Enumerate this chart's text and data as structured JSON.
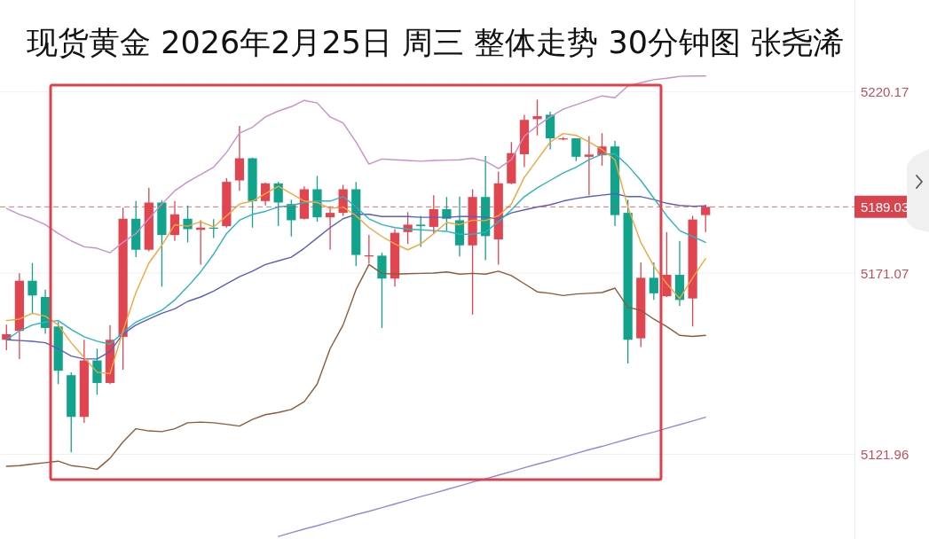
{
  "chart_data": {
    "type": "candlestick",
    "title": "现货黄金 2026年2月25日 周三 整体走势 30分钟图 张尧浠",
    "categories": [
      null,
      null,
      null,
      null,
      null,
      null,
      null,
      null,
      null,
      null,
      null,
      null,
      null,
      null,
      null,
      null,
      null,
      null,
      null,
      null,
      null,
      null,
      null,
      null,
      null,
      null,
      null,
      null,
      null,
      null,
      null,
      null,
      null,
      null,
      null,
      null,
      null,
      null,
      null,
      null,
      null,
      null,
      null,
      null,
      null,
      null,
      null,
      null,
      null,
      null,
      null,
      null,
      null,
      null,
      null
    ],
    "ohlc": [
      [
        5153.0,
        5157.1,
        5150.2,
        5154.5
      ],
      [
        5155.4,
        5171.0,
        5147.8,
        5169.0
      ],
      [
        5169.0,
        5173.8,
        5160.2,
        5165.0
      ],
      [
        5164.6,
        5166.6,
        5154.6,
        5156.2
      ],
      [
        5156.6,
        5157.8,
        5141.0,
        5144.6
      ],
      [
        5143.4,
        5144.2,
        5122.5,
        5132.1
      ],
      [
        5132.1,
        5153.0,
        5130.5,
        5147.4
      ],
      [
        5147.4,
        5150.6,
        5138.1,
        5141.3
      ],
      [
        5141.3,
        5157.0,
        5141.0,
        5153.0
      ],
      [
        5153.8,
        5188.8,
        5144.9,
        5185.8
      ],
      [
        5185.8,
        5190.6,
        5175.4,
        5177.4
      ],
      [
        5177.4,
        5194.2,
        5177.0,
        5190.2
      ],
      [
        5190.2,
        5190.8,
        5167.4,
        5181.4
      ],
      [
        5181.4,
        5190.6,
        5179.8,
        5187.0
      ],
      [
        5185.8,
        5189.4,
        5179.4,
        5183.0
      ],
      [
        5182.8,
        5185.4,
        5173.4,
        5183.4
      ],
      [
        5183.4,
        5185.7,
        5180.6,
        5183.2
      ],
      [
        5183.8,
        5196.8,
        5183.4,
        5195.8
      ],
      [
        5196.2,
        5211.0,
        5193.4,
        5202.2
      ],
      [
        5202.2,
        5202.4,
        5183.4,
        5190.6
      ],
      [
        5190.6,
        5195.6,
        5189.4,
        5195.4
      ],
      [
        5195.4,
        5195.8,
        5183.8,
        5190.2
      ],
      [
        5189.8,
        5191.0,
        5181.0,
        5185.4
      ],
      [
        5185.8,
        5194.6,
        5185.6,
        5193.8
      ],
      [
        5193.8,
        5197.4,
        5185.0,
        5186.2
      ],
      [
        5186.2,
        5189.1,
        5177.4,
        5187.4
      ],
      [
        5187.4,
        5195.0,
        5186.6,
        5193.8
      ],
      [
        5193.8,
        5195.8,
        5173.0,
        5176.0
      ],
      [
        5175.6,
        5181.4,
        5173.7,
        5175.9
      ],
      [
        5175.8,
        5176.6,
        5156.2,
        5169.6
      ],
      [
        5169.6,
        5183.0,
        5167.4,
        5182.0
      ],
      [
        5182.2,
        5187.6,
        5179.0,
        5184.2
      ],
      [
        5184.2,
        5186.6,
        5178.2,
        5183.8
      ],
      [
        5183.6,
        5192.2,
        5181.8,
        5188.4
      ],
      [
        5188.4,
        5191.7,
        5182.6,
        5185.8
      ],
      [
        5185.4,
        5191.8,
        5175.6,
        5178.6
      ],
      [
        5178.6,
        5193.8,
        5159.8,
        5191.7
      ],
      [
        5191.7,
        5202.8,
        5174.6,
        5181.1
      ],
      [
        5180.2,
        5198.6,
        5173.4,
        5195.4
      ],
      [
        5195.4,
        5206.6,
        5195.2,
        5203.6
      ],
      [
        5203.3,
        5214.0,
        5199.8,
        5212.6
      ],
      [
        5212.8,
        5218.1,
        5208.4,
        5213.6
      ],
      [
        5214.0,
        5214.8,
        5204.6,
        5207.6
      ],
      [
        5207.3,
        5207.9,
        5207.1,
        5207.6
      ],
      [
        5207.6,
        5207.6,
        5201.4,
        5202.6
      ],
      [
        5202.6,
        5208.2,
        5192.2,
        5203.2
      ],
      [
        5203.0,
        5209.0,
        5200.2,
        5205.4
      ],
      [
        5205.4,
        5206.9,
        5183.8,
        5186.8
      ],
      [
        5187.4,
        5191.0,
        5146.6,
        5153.0
      ],
      [
        5153.4,
        5174.0,
        5151.0,
        5169.8
      ],
      [
        5169.8,
        5174.0,
        5163.8,
        5165.6
      ],
      [
        5164.8,
        5182.2,
        5164.6,
        5170.6
      ],
      [
        5170.6,
        5179.8,
        5162.2,
        5163.8
      ],
      [
        5164.2,
        5186.6,
        5156.6,
        5185.6
      ],
      [
        5186.8,
        5189.6,
        5182.2,
        5189.03
      ]
    ],
    "colors": [
      "#e04550",
      "#e04550",
      "#12a38c",
      "#12a38c",
      "#12a38c",
      "#12a38c",
      "#e04550",
      "#12a38c",
      "#e04550",
      "#e04550",
      "#12a38c",
      "#e04550",
      "#12a38c",
      "#e04550",
      "#12a38c",
      "#e04550",
      "#12a38c",
      "#e04550",
      "#e04550",
      "#12a38c",
      "#e04550",
      "#12a38c",
      "#12a38c",
      "#e04550",
      "#12a38c",
      "#e04550",
      "#e04550",
      "#12a38c",
      "#e04550",
      "#12a38c",
      "#e04550",
      "#e04550",
      "#12a38c",
      "#e04550",
      "#12a38c",
      "#12a38c",
      "#e04550",
      "#12a38c",
      "#e04550",
      "#e04550",
      "#e04550",
      "#e04550",
      "#12a38c",
      "#e04550",
      "#12a38c",
      "#e04550",
      "#e04550",
      "#12a38c",
      "#12a38c",
      "#e04550",
      "#12a38c",
      "#e04550",
      "#12a38c",
      "#e04550",
      "#e04550"
    ],
    "series": [
      {
        "type": "line",
        "color": "#c98fcb",
        "values": [
          5188.6,
          5187.0,
          5185.8,
          5184.2,
          5181.8,
          5179.8,
          5178.2,
          5177.8,
          5176.6,
          5179.4,
          5181.8,
          5185.8,
          5189.8,
          5193.4,
          5195.8,
          5197.8,
          5199.8,
          5203.8,
          5209.0,
          5210.6,
          5213.4,
          5215.0,
          5216.2,
          5217.9,
          5217.2,
          5213.4,
          5211.8,
          5206.6,
          5200.6,
          5202.0,
          5201.8,
          5201.6,
          5201.4,
          5201.6,
          5201.7,
          5201.8,
          5202.2,
          5201.4,
          5199.4,
          5201.8,
          5208.2,
          5211.0,
          5213.4,
          5215.5,
          5216.7,
          5217.9,
          5219.1,
          5218.6,
          5221.8,
          5222.7,
          5223.5,
          5223.9,
          5224.4,
          5224.5,
          5224.5
        ]
      },
      {
        "type": "line",
        "color": "#8e5a3a",
        "values": [
          5118.7,
          5118.9,
          5119.3,
          5119.7,
          5120.1,
          5118.9,
          5118.5,
          5117.9,
          5120.9,
          5125.3,
          5128.9,
          5128.3,
          5128.1,
          5128.9,
          5130.5,
          5130.7,
          5130.5,
          5130.1,
          5129.6,
          5131.4,
          5132.7,
          5133.3,
          5134.1,
          5136.2,
          5141.0,
          5150.6,
          5157.0,
          5166.6,
          5173.4,
          5171.0,
          5170.8,
          5170.9,
          5171.0,
          5171.1,
          5171.4,
          5170.8,
          5171.0,
          5170.8,
          5171.6,
          5170.4,
          5168.2,
          5166.0,
          5165.6,
          5165.0,
          5165.4,
          5165.6,
          5165.8,
          5167.0,
          5161.8,
          5161.0,
          5158.6,
          5156.6,
          5154.2,
          5153.9,
          5154.2
        ]
      },
      {
        "type": "line",
        "color": "#5a5ec4",
        "values": [
          5153.0,
          5152.8,
          5152.6,
          5152.2,
          5150.6,
          5148.6,
          5147.8,
          5147.8,
          5149.8,
          5154.6,
          5157.0,
          5158.6,
          5160.2,
          5161.4,
          5163.4,
          5164.6,
          5166.2,
          5168.2,
          5170.1,
          5171.6,
          5173.4,
          5174.4,
          5175.4,
          5177.8,
          5180.6,
          5183.4,
          5185.8,
          5187.0,
          5187.0,
          5186.4,
          5186.4,
          5186.4,
          5186.2,
          5186.2,
          5186.2,
          5186.4,
          5186.4,
          5186.2,
          5185.8,
          5187.4,
          5188.2,
          5189.0,
          5189.6,
          5190.6,
          5191.3,
          5191.8,
          5192.2,
          5192.6,
          5191.8,
          5191.8,
          5191.0,
          5190.0,
          5189.4,
          5189.2,
          5189.3
        ]
      },
      {
        "type": "line",
        "color": "#2bb3c4",
        "values": [
          5153.0,
          5155.4,
          5157.0,
          5157.8,
          5158.2,
          5155.8,
          5153.8,
          5152.6,
          5151.8,
          5155.0,
          5157.8,
          5159.4,
          5161.0,
          5163.8,
          5167.4,
          5171.4,
          5176.2,
          5181.8,
          5185.4,
          5187.0,
          5187.8,
          5189.0,
          5189.4,
          5190.2,
          5190.6,
          5190.6,
          5191.8,
          5189.0,
          5185.8,
          5184.2,
          5183.4,
          5183.0,
          5182.8,
          5182.6,
          5182.4,
          5181.6,
          5181.6,
          5182.2,
          5185.0,
          5188.2,
          5191.8,
          5194.2,
          5196.2,
          5198.2,
          5199.8,
          5201.8,
          5203.3,
          5203.4,
          5200.2,
          5196.2,
          5191.4,
          5186.6,
          5182.6,
          5181.0,
          5179.4
        ]
      },
      {
        "type": "line",
        "color": "#f3a53a",
        "values": [
          5158.2,
          5158.6,
          5160.2,
          5159.4,
          5157.0,
          5152.2,
          5148.2,
          5144.2,
          5143.8,
          5155.4,
          5165.8,
          5173.8,
          5178.6,
          5184.2,
          5183.8,
          5185.0,
          5183.6,
          5186.6,
          5189.8,
          5190.6,
          5192.6,
          5194.6,
          5192.6,
          5190.6,
          5190.2,
          5188.6,
          5189.0,
          5186.6,
          5183.4,
          5181.0,
          5179.0,
          5177.4,
          5179.0,
          5181.8,
          5184.8,
          5184.2,
          5185.4,
          5185.3,
          5186.6,
          5189.8,
          5197.0,
          5201.8,
          5206.6,
          5208.9,
          5208.4,
          5206.6,
          5204.6,
          5201.8,
          5189.0,
          5179.4,
          5173.0,
          5168.2,
          5164.2,
          5169.8,
          5175.0
        ]
      },
      {
        "type": "line",
        "color": "#9488d8",
        "values": [
          null,
          null,
          null,
          null,
          null,
          null,
          null,
          null,
          null,
          null,
          null,
          null,
          null,
          null,
          null,
          null,
          null,
          null,
          null,
          null,
          null,
          5099.7,
          5100.7,
          5101.7,
          5102.6,
          5103.6,
          5104.6,
          5105.6,
          5106.5,
          5107.5,
          5108.5,
          5109.5,
          5110.5,
          5111.4,
          5112.4,
          5113.4,
          5114.4,
          5115.3,
          5116.3,
          5117.3,
          5118.3,
          5119.3,
          5120.2,
          5121.2,
          5122.2,
          5123.2,
          5124.1,
          5125.1,
          5126.1,
          5127.1,
          5128.0,
          5129.0,
          5130.0,
          5131.0,
          5132.0
        ]
      }
    ],
    "ylim": [
      5099.0,
      5245.1
    ],
    "yticks": [
      5220.17,
      5171.07,
      5121.96
    ],
    "ref_lines": [
      {
        "axis": "y",
        "value": 5189.03,
        "label": "5189.03",
        "color": "#d9434e",
        "line_style": "dashed"
      }
    ],
    "grid": "y",
    "tick_labels": "y"
  }
}
